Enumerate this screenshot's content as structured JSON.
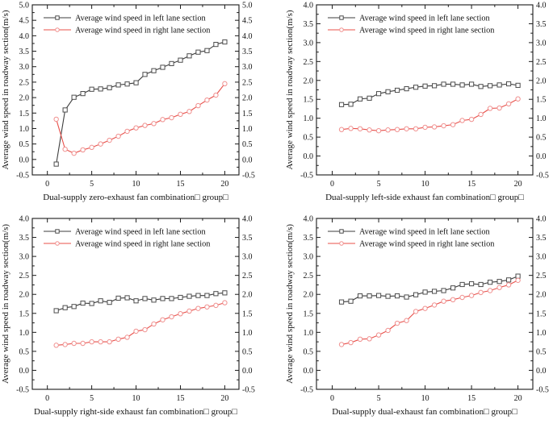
{
  "page": {
    "background": "#ffffff"
  },
  "colors": {
    "left_lane_line": "#3d3d3d",
    "left_lane_marker": "#4d4d4d",
    "right_lane_line": "#e8504a",
    "right_lane_marker": "#f0908f",
    "axis": "#1a1a1a",
    "text": "#111111"
  },
  "chart_data": [
    {
      "type": "line",
      "title": "",
      "xlabel": "Dual-supply zero-exhaust fan combination□ group□",
      "ylabel": "Average wind speed in roadway section(m/s)",
      "xlim": [
        -1.7,
        21.6
      ],
      "ylim": [
        -0.5,
        5.0
      ],
      "ytick_step": 0.5,
      "yminor_step": 0.25,
      "xticks": [
        0,
        5,
        10,
        15,
        20
      ],
      "xminor_step": 2.5,
      "grid": false,
      "legend_position": "top-left",
      "x": [
        1,
        2,
        3,
        4,
        5,
        6,
        7,
        8,
        9,
        10,
        11,
        12,
        13,
        14,
        15,
        16,
        17,
        18,
        19,
        20
      ],
      "series": [
        {
          "name": "Average wind speed in left lane section",
          "color": "#3d3d3d",
          "marker": "square",
          "marker_color": "#4d4d4d",
          "values": [
            -0.15,
            1.6,
            2.01,
            2.13,
            2.27,
            2.28,
            2.32,
            2.41,
            2.44,
            2.48,
            2.75,
            2.87,
            2.98,
            3.1,
            3.21,
            3.35,
            3.47,
            3.52,
            3.72,
            3.8
          ]
        },
        {
          "name": "Average wind speed in right lane  section",
          "color": "#e8504a",
          "marker": "circle",
          "marker_color": "#f0908f",
          "values": [
            1.3,
            0.33,
            0.2,
            0.31,
            0.39,
            0.5,
            0.62,
            0.75,
            0.91,
            1.02,
            1.1,
            1.16,
            1.29,
            1.35,
            1.46,
            1.55,
            1.74,
            1.92,
            2.08,
            2.45
          ]
        }
      ]
    },
    {
      "type": "line",
      "title": "",
      "xlabel": "Dual-supply left-side exhaust fan combination□ group□",
      "ylabel": "Average wind speed in roadway section(m/s)",
      "xlim": [
        -1.7,
        21.6
      ],
      "ylim": [
        -0.5,
        4.0
      ],
      "ytick_step": 0.5,
      "yminor_step": 0.25,
      "xticks": [
        0,
        5,
        10,
        15,
        20
      ],
      "xminor_step": 2.5,
      "grid": false,
      "legend_position": "top-left",
      "x": [
        1,
        2,
        3,
        4,
        5,
        6,
        7,
        8,
        9,
        10,
        11,
        12,
        13,
        14,
        15,
        16,
        17,
        18,
        19,
        20
      ],
      "series": [
        {
          "name": "Average wind speed in left lane section",
          "color": "#3d3d3d",
          "marker": "square",
          "marker_color": "#4d4d4d",
          "values": [
            1.36,
            1.37,
            1.51,
            1.53,
            1.65,
            1.7,
            1.74,
            1.78,
            1.82,
            1.85,
            1.86,
            1.9,
            1.9,
            1.88,
            1.9,
            1.84,
            1.86,
            1.88,
            1.91,
            1.87
          ]
        },
        {
          "name": "Average wind speed in right lane section",
          "color": "#e8504a",
          "marker": "circle",
          "marker_color": "#f0908f",
          "values": [
            0.7,
            0.73,
            0.72,
            0.69,
            0.67,
            0.69,
            0.7,
            0.72,
            0.72,
            0.76,
            0.77,
            0.8,
            0.83,
            0.94,
            0.97,
            1.1,
            1.26,
            1.27,
            1.38,
            1.51
          ]
        }
      ]
    },
    {
      "type": "line",
      "title": "",
      "xlabel": "Dual-supply right-side exhaust fan combination□ group□",
      "ylabel": "Average wind speed in roadway section(m/s)",
      "xlim": [
        -1.7,
        21.6
      ],
      "ylim": [
        -0.5,
        4.0
      ],
      "ytick_step": 0.5,
      "yminor_step": 0.25,
      "xticks": [
        0,
        5,
        10,
        15,
        20
      ],
      "xminor_step": 2.5,
      "grid": false,
      "legend_position": "top-left",
      "x": [
        1,
        2,
        3,
        4,
        5,
        6,
        7,
        8,
        9,
        10,
        11,
        12,
        13,
        14,
        15,
        16,
        17,
        18,
        19,
        20
      ],
      "series": [
        {
          "name": "Average wind speed in left lane section",
          "color": "#3d3d3d",
          "marker": "square",
          "marker_color": "#4d4d4d",
          "values": [
            1.57,
            1.65,
            1.68,
            1.77,
            1.76,
            1.83,
            1.79,
            1.9,
            1.91,
            1.83,
            1.89,
            1.85,
            1.89,
            1.89,
            1.92,
            1.95,
            1.97,
            1.97,
            2.02,
            2.04
          ]
        },
        {
          "name": "Average wind speed in right lane section",
          "color": "#e8504a",
          "marker": "circle",
          "marker_color": "#f0908f",
          "values": [
            0.66,
            0.68,
            0.71,
            0.71,
            0.75,
            0.75,
            0.75,
            0.82,
            0.87,
            1.03,
            1.07,
            1.22,
            1.33,
            1.41,
            1.49,
            1.56,
            1.63,
            1.67,
            1.71,
            1.78
          ]
        }
      ]
    },
    {
      "type": "line",
      "title": "",
      "xlabel": "Dual-supply dual-exhaust fan combination□ group□",
      "ylabel": "Average wind speed in roadway section(m/s)",
      "xlim": [
        -1.7,
        21.6
      ],
      "ylim": [
        -0.5,
        4.0
      ],
      "ytick_step": 0.5,
      "yminor_step": 0.25,
      "xticks": [
        0,
        5,
        10,
        15,
        20
      ],
      "xminor_step": 2.5,
      "grid": false,
      "legend_position": "top-left",
      "x": [
        1,
        2,
        3,
        4,
        5,
        6,
        7,
        8,
        9,
        10,
        11,
        12,
        13,
        14,
        15,
        16,
        17,
        18,
        19,
        20
      ],
      "series": [
        {
          "name": "Average wind speed in left lane section",
          "color": "#3d3d3d",
          "marker": "square",
          "marker_color": "#4d4d4d",
          "values": [
            1.8,
            1.82,
            1.96,
            1.96,
            1.97,
            1.95,
            1.96,
            1.93,
            1.99,
            2.06,
            2.08,
            2.1,
            2.17,
            2.26,
            2.28,
            2.26,
            2.32,
            2.34,
            2.38,
            2.48
          ]
        },
        {
          "name": "Average wind speed in right lane section",
          "color": "#e8504a",
          "marker": "circle",
          "marker_color": "#f0908f",
          "values": [
            0.68,
            0.73,
            0.82,
            0.83,
            0.93,
            1.05,
            1.24,
            1.31,
            1.55,
            1.63,
            1.72,
            1.82,
            1.86,
            1.92,
            1.97,
            2.05,
            2.1,
            2.18,
            2.25,
            2.37
          ]
        }
      ]
    }
  ]
}
